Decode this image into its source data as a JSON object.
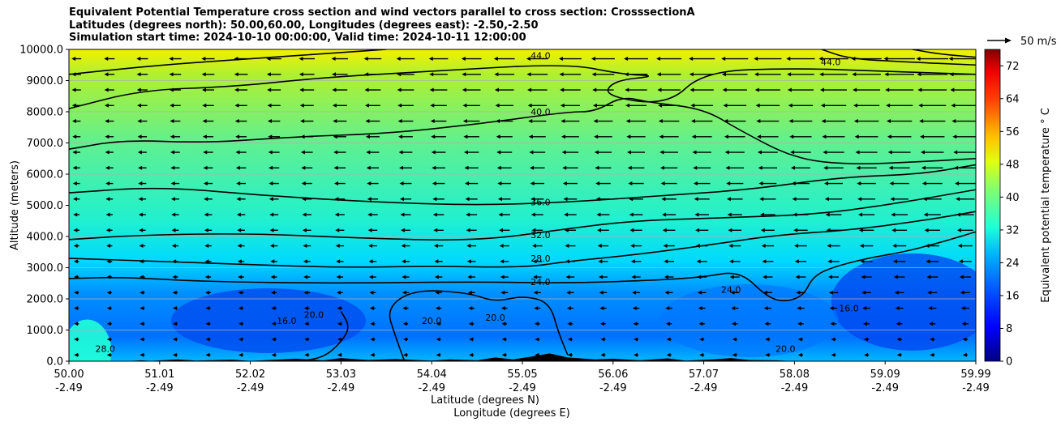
{
  "chart_data": {
    "type": "cross-section",
    "title_lines": [
      "Equivalent Potential Temperature cross section and wind vectors parallel to cross section: CrosssectionA",
      "Latitudes (degrees north): 50.00,60.00, Longitudes (degrees east): -2.50,-2.50",
      "Simulation start time: 2024-10-10 00:00:00, Valid time: 2024-10-11 12:00:00"
    ],
    "ylabel": "Altitude (meters)",
    "xlabel_lat": "Latitude (degrees N)",
    "xlabel_lon": "Longitude (degrees E)",
    "ylim": [
      0,
      10000
    ],
    "y_ticks": [
      "0.0",
      "1000.0",
      "2000.0",
      "3000.0",
      "4000.0",
      "5000.0",
      "6000.0",
      "7000.0",
      "8000.0",
      "9000.0",
      "10000.0"
    ],
    "x_ticks_lat": [
      "50.00",
      "51.01",
      "52.02",
      "53.03",
      "54.04",
      "55.05",
      "56.06",
      "57.07",
      "58.08",
      "59.09",
      "59.99"
    ],
    "x_ticks_lon": [
      "-2.49",
      "-2.49",
      "-2.49",
      "-2.49",
      "-2.49",
      "-2.49",
      "-2.49",
      "-2.49",
      "-2.49",
      "-2.49",
      "-2.49"
    ],
    "colorbar": {
      "label": "Equivalent potential temperature ° C",
      "min": 0,
      "max": 76,
      "ticks": [
        "0",
        "8",
        "16",
        "24",
        "32",
        "40",
        "48",
        "56",
        "64",
        "72"
      ]
    },
    "wind_key": "50 m/s",
    "contours": [
      {
        "level": "16.0",
        "points": [
          [
            0.3,
            1600
          ],
          [
            0.31,
            1100
          ],
          [
            0.3,
            600
          ],
          [
            0.28,
            100
          ],
          [
            0.25,
            0
          ]
        ]
      },
      {
        "level": "20.0",
        "points": [
          [
            0.37,
            0
          ],
          [
            0.36,
            800
          ],
          [
            0.35,
            1700
          ],
          [
            0.38,
            2300
          ],
          [
            0.44,
            2200
          ],
          [
            0.47,
            1900
          ],
          [
            0.5,
            2100
          ],
          [
            0.53,
            1900
          ],
          [
            0.54,
            900
          ],
          [
            0.55,
            200
          ]
        ]
      },
      {
        "level": "24.0",
        "points": [
          [
            0,
            2650
          ],
          [
            0.06,
            2700
          ],
          [
            0.15,
            2550
          ],
          [
            0.3,
            2500
          ],
          [
            0.45,
            2550
          ],
          [
            0.55,
            2500
          ],
          [
            0.65,
            2600
          ],
          [
            0.7,
            2700
          ],
          [
            0.74,
            2900
          ],
          [
            0.77,
            2050
          ],
          [
            0.79,
            1900
          ],
          [
            0.81,
            2100
          ],
          [
            0.82,
            2700
          ],
          [
            0.84,
            3000
          ],
          [
            0.88,
            3300
          ],
          [
            0.92,
            3500
          ],
          [
            0.96,
            3800
          ],
          [
            1.0,
            4150
          ]
        ]
      },
      {
        "level": "28.0",
        "points": [
          [
            0,
            3300
          ],
          [
            0.1,
            3200
          ],
          [
            0.2,
            3100
          ],
          [
            0.3,
            3000
          ],
          [
            0.4,
            3050
          ],
          [
            0.5,
            3000
          ],
          [
            0.55,
            3200
          ],
          [
            0.62,
            3400
          ],
          [
            0.7,
            3700
          ],
          [
            0.78,
            4050
          ],
          [
            0.86,
            4200
          ],
          [
            0.94,
            4500
          ],
          [
            1.0,
            4800
          ]
        ]
      },
      {
        "level": "32.0",
        "points": [
          [
            0,
            3900
          ],
          [
            0.08,
            4050
          ],
          [
            0.2,
            4100
          ],
          [
            0.32,
            3950
          ],
          [
            0.45,
            3850
          ],
          [
            0.55,
            4250
          ],
          [
            0.62,
            4500
          ],
          [
            0.72,
            4600
          ],
          [
            0.82,
            4700
          ],
          [
            0.9,
            5000
          ],
          [
            1.0,
            5500
          ]
        ]
      },
      {
        "level": "36.0",
        "points": [
          [
            0,
            5400
          ],
          [
            0.1,
            5600
          ],
          [
            0.22,
            5300
          ],
          [
            0.34,
            5100
          ],
          [
            0.45,
            5000
          ],
          [
            0.55,
            5100
          ],
          [
            0.65,
            5300
          ],
          [
            0.75,
            5500
          ],
          [
            0.85,
            5900
          ],
          [
            0.94,
            6000
          ],
          [
            1.0,
            6300
          ]
        ]
      },
      {
        "level": "40.0",
        "points": [
          [
            0,
            6800
          ],
          [
            0.06,
            7100
          ],
          [
            0.15,
            7000
          ],
          [
            0.25,
            7200
          ],
          [
            0.35,
            7300
          ],
          [
            0.45,
            7600
          ],
          [
            0.55,
            8000
          ],
          [
            0.58,
            8000
          ],
          [
            0.61,
            8500
          ],
          [
            0.64,
            8300
          ],
          [
            0.7,
            8100
          ],
          [
            0.74,
            7400
          ],
          [
            0.8,
            6500
          ],
          [
            0.86,
            6300
          ],
          [
            0.94,
            6400
          ],
          [
            1.0,
            6500
          ]
        ]
      },
      {
        "level": "44.0",
        "points": [
          [
            0,
            8100
          ],
          [
            0.08,
            8700
          ],
          [
            0.18,
            8800
          ],
          [
            0.28,
            9100
          ],
          [
            0.4,
            9300
          ],
          [
            0.55,
            9550
          ],
          [
            0.61,
            9200
          ],
          [
            0.65,
            9150
          ],
          [
            0.6,
            9000
          ],
          [
            0.59,
            8500
          ],
          [
            0.66,
            8200
          ],
          [
            0.7,
            9300
          ],
          [
            0.8,
            9400
          ],
          [
            0.9,
            9300
          ],
          [
            1.0,
            9200
          ]
        ]
      },
      {
        "level": "48.0",
        "points": [
          [
            0,
            9200
          ],
          [
            0.1,
            9500
          ],
          [
            0.2,
            9700
          ],
          [
            0.3,
            9900
          ],
          [
            0.35,
            10000
          ]
        ]
      },
      {
        "level": "44.0",
        "points": [
          [
            0.83,
            10000
          ],
          [
            0.86,
            9700
          ],
          [
            0.92,
            9600
          ],
          [
            1.0,
            9500
          ]
        ]
      },
      {
        "level": "48.0",
        "points": [
          [
            0.93,
            10000
          ],
          [
            0.96,
            9850
          ],
          [
            1.0,
            9750
          ]
        ]
      }
    ],
    "contour_labels": [
      {
        "text": "44.0",
        "x": 0.52,
        "y": 9800
      },
      {
        "text": "44.0",
        "x": 0.84,
        "y": 9600
      },
      {
        "text": "40.0",
        "x": 0.52,
        "y": 8000
      },
      {
        "text": "36.0",
        "x": 0.52,
        "y": 5100
      },
      {
        "text": "32.0",
        "x": 0.52,
        "y": 4050
      },
      {
        "text": "28.0",
        "x": 0.52,
        "y": 3300
      },
      {
        "text": "24.0",
        "x": 0.52,
        "y": 2550
      },
      {
        "text": "24.0",
        "x": 0.73,
        "y": 2300
      },
      {
        "text": "28.0",
        "x": 0.04,
        "y": 400
      },
      {
        "text": "16.0",
        "x": 0.24,
        "y": 1300
      },
      {
        "text": "20.0",
        "x": 0.27,
        "y": 1500
      },
      {
        "text": "20.0",
        "x": 0.4,
        "y": 1300
      },
      {
        "text": "20.0",
        "x": 0.47,
        "y": 1400
      },
      {
        "text": "16.0",
        "x": 0.86,
        "y": 1700
      },
      {
        "text": "20.0",
        "x": 0.79,
        "y": 400
      }
    ]
  }
}
